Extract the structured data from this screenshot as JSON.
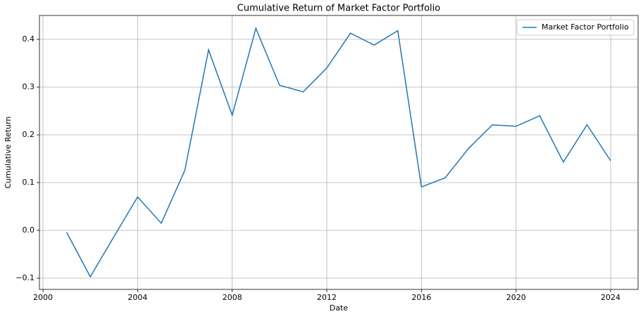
{
  "chart_data": {
    "type": "line",
    "title": "Cumulative Return of Market Factor Portfolio",
    "x_label": "Date",
    "y_label": "Cumulative Return",
    "x": [
      2001,
      2002,
      2003,
      2004,
      2005,
      2006,
      2007,
      2008,
      2009,
      2010,
      2011,
      2012,
      2013,
      2014,
      2015,
      2016,
      2017,
      2018,
      2019,
      2020,
      2021,
      2022,
      2023,
      2024
    ],
    "series": [
      {
        "name": "Market Factor Portfolio",
        "color": "#1f77b4",
        "values": [
          -0.004,
          -0.097,
          -0.013,
          0.07,
          0.015,
          0.126,
          0.378,
          0.241,
          0.423,
          0.304,
          0.29,
          0.34,
          0.413,
          0.388,
          0.418,
          0.091,
          0.11,
          0.172,
          0.221,
          0.218,
          0.24,
          0.143,
          0.221,
          0.146
        ]
      }
    ],
    "xlim": [
      1999.85,
      2025.16
    ],
    "xticks": [
      2000,
      2004,
      2008,
      2012,
      2016,
      2020,
      2024
    ],
    "ylim": [
      -0.1235,
      0.45
    ],
    "yticks": [
      {
        "value": -0.1,
        "label": "−0.1"
      },
      {
        "value": 0,
        "label": "0.0"
      },
      0.1,
      0.2,
      0.3,
      0.4
    ],
    "grid": true,
    "legend": "upper-right"
  }
}
